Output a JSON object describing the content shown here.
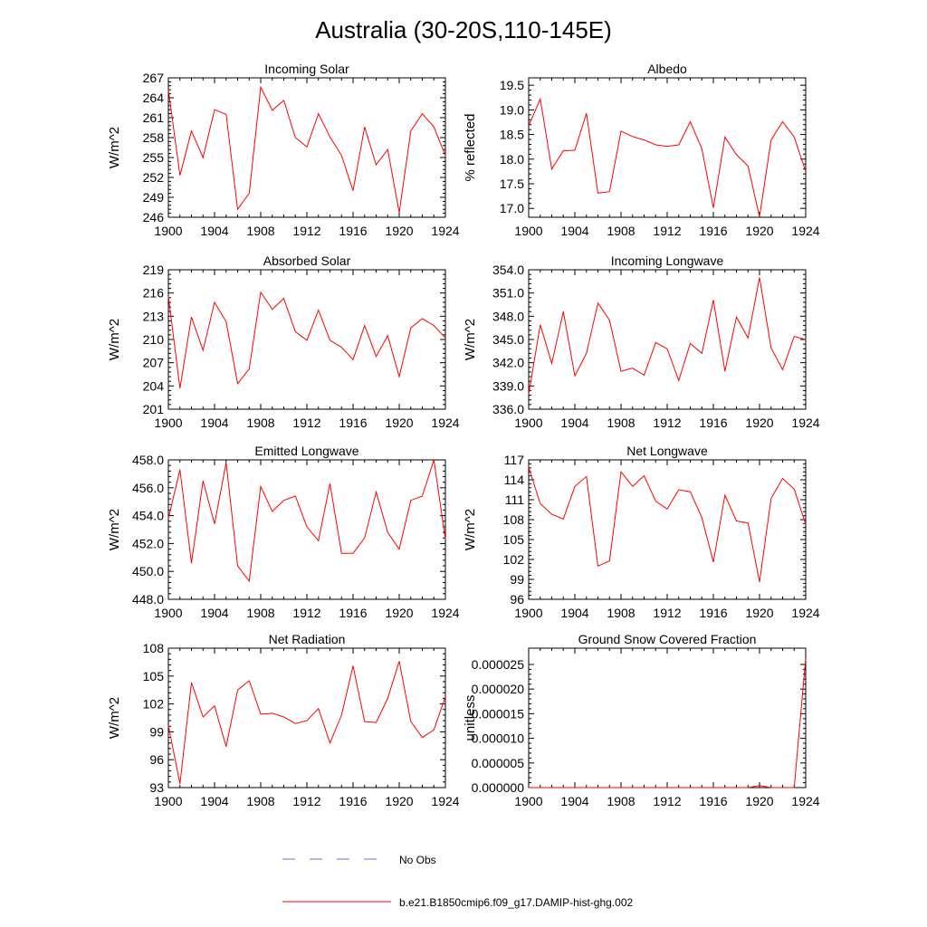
{
  "figure_title": "Australia (30-20S,110-145E)",
  "legend": {
    "obs_label": "No Obs",
    "obs_color": "#6f6fc7",
    "model_label": "b.e21.B1850cmip6.f09_g17.DAMIP-hist-ghg.002",
    "model_color": "#ff0000"
  },
  "chart_data": [
    {
      "type": "line",
      "title": "Incoming Solar",
      "ylabel": "W/m^2",
      "x": [
        1900,
        1901,
        1902,
        1903,
        1904,
        1905,
        1906,
        1907,
        1908,
        1909,
        1910,
        1911,
        1912,
        1913,
        1914,
        1915,
        1916,
        1917,
        1918,
        1919,
        1920,
        1921,
        1922,
        1923,
        1924
      ],
      "values": [
        265.2,
        252.3,
        259.0,
        255.0,
        262.2,
        261.5,
        247.2,
        249.6,
        265.6,
        262.1,
        263.6,
        258.0,
        256.6,
        261.6,
        258.1,
        255.3,
        250.0,
        259.6,
        253.9,
        256.2,
        246.7,
        259.0,
        261.6,
        259.6,
        255.3
      ],
      "ylim": [
        246,
        267
      ],
      "yticks": [
        "246",
        "249",
        "252",
        "255",
        "258",
        "261",
        "264",
        "267"
      ],
      "xlim": [
        1900,
        1924
      ],
      "xticks": [
        "1900",
        "1904",
        "1908",
        "1912",
        "1916",
        "1920",
        "1924"
      ]
    },
    {
      "type": "line",
      "title": "Albedo",
      "ylabel": "% reflected",
      "x": [
        1900,
        1901,
        1902,
        1903,
        1904,
        1905,
        1906,
        1907,
        1908,
        1909,
        1910,
        1911,
        1912,
        1913,
        1914,
        1915,
        1916,
        1917,
        1918,
        1919,
        1920,
        1921,
        1922,
        1923,
        1924
      ],
      "values": [
        18.68,
        19.22,
        17.8,
        18.17,
        18.18,
        18.93,
        17.31,
        17.34,
        18.57,
        18.46,
        18.39,
        18.29,
        18.26,
        18.29,
        18.76,
        18.21,
        17.01,
        18.45,
        18.09,
        17.86,
        16.83,
        18.39,
        18.76,
        18.45,
        17.75
      ],
      "ylim": [
        16.82,
        19.65
      ],
      "yticks": [
        "17.0",
        "17.5",
        "18.0",
        "18.5",
        "19.0",
        "19.5"
      ],
      "xlim": [
        1900,
        1924
      ],
      "xticks": [
        "1900",
        "1904",
        "1908",
        "1912",
        "1916",
        "1920",
        "1924"
      ]
    },
    {
      "type": "line",
      "title": "Absorbed Solar",
      "ylabel": "W/m^2",
      "x": [
        1900,
        1901,
        1902,
        1903,
        1904,
        1905,
        1906,
        1907,
        1908,
        1909,
        1910,
        1911,
        1912,
        1913,
        1914,
        1915,
        1916,
        1917,
        1918,
        1919,
        1920,
        1921,
        1922,
        1923,
        1924
      ],
      "values": [
        215.6,
        203.7,
        212.9,
        208.6,
        214.8,
        212.3,
        204.3,
        206.2,
        216.1,
        213.9,
        215.3,
        211.0,
        209.9,
        213.8,
        209.9,
        209.0,
        207.4,
        211.8,
        207.8,
        210.5,
        205.2,
        211.5,
        212.7,
        211.8,
        210.2
      ],
      "ylim": [
        201,
        219
      ],
      "yticks": [
        "201",
        "204",
        "207",
        "210",
        "213",
        "216",
        "219"
      ],
      "xlim": [
        1900,
        1924
      ],
      "xticks": [
        "1900",
        "1904",
        "1908",
        "1912",
        "1916",
        "1920",
        "1924"
      ]
    },
    {
      "type": "line",
      "title": "Incoming Longwave",
      "ylabel": "W/m^2",
      "x": [
        1900,
        1901,
        1902,
        1903,
        1904,
        1905,
        1906,
        1907,
        1908,
        1909,
        1910,
        1911,
        1912,
        1913,
        1914,
        1915,
        1916,
        1917,
        1918,
        1919,
        1920,
        1921,
        1922,
        1923,
        1924
      ],
      "values": [
        337.9,
        346.9,
        341.9,
        348.6,
        340.3,
        343.2,
        349.7,
        347.5,
        340.9,
        341.3,
        340.4,
        344.6,
        343.8,
        339.7,
        344.5,
        343.2,
        350.1,
        340.9,
        347.9,
        345.2,
        353.0,
        343.9,
        341.1,
        345.4,
        345.0
      ],
      "ylim": [
        336,
        354
      ],
      "yticks": [
        "336.0",
        "339.0",
        "342.0",
        "345.0",
        "348.0",
        "351.0",
        "354.0"
      ],
      "xlim": [
        1900,
        1924
      ],
      "xticks": [
        "1900",
        "1904",
        "1908",
        "1912",
        "1916",
        "1920",
        "1924"
      ]
    },
    {
      "type": "line",
      "title": "Emitted Longwave",
      "ylabel": "W/m^2",
      "x": [
        1900,
        1901,
        1902,
        1903,
        1904,
        1905,
        1906,
        1907,
        1908,
        1909,
        1910,
        1911,
        1912,
        1913,
        1914,
        1915,
        1916,
        1917,
        1918,
        1919,
        1920,
        1921,
        1922,
        1923,
        1924
      ],
      "values": [
        453.8,
        457.3,
        450.6,
        456.5,
        453.4,
        457.8,
        450.4,
        449.3,
        456.1,
        454.3,
        455.1,
        455.4,
        453.2,
        452.2,
        456.3,
        451.3,
        451.3,
        452.4,
        455.7,
        452.8,
        451.6,
        455.1,
        455.4,
        458.0,
        452.3
      ],
      "ylim": [
        448,
        458
      ],
      "yticks": [
        "448.0",
        "450.0",
        "452.0",
        "454.0",
        "456.0",
        "458.0"
      ],
      "xlim": [
        1900,
        1924
      ],
      "xticks": [
        "1900",
        "1904",
        "1908",
        "1912",
        "1916",
        "1920",
        "1924"
      ]
    },
    {
      "type": "line",
      "title": "Net Longwave",
      "ylabel": "W/m^2",
      "x": [
        1900,
        1901,
        1902,
        1903,
        1904,
        1905,
        1906,
        1907,
        1908,
        1909,
        1910,
        1911,
        1912,
        1913,
        1914,
        1915,
        1916,
        1917,
        1918,
        1919,
        1920,
        1921,
        1922,
        1923,
        1924
      ],
      "values": [
        115.9,
        110.4,
        108.8,
        108.1,
        113.0,
        114.5,
        101.0,
        101.8,
        115.2,
        113.0,
        114.6,
        110.8,
        109.6,
        112.5,
        112.2,
        108.3,
        101.6,
        111.7,
        107.8,
        107.5,
        98.6,
        111.2,
        114.2,
        112.6,
        107.3
      ],
      "ylim": [
        96,
        117
      ],
      "yticks": [
        "96",
        "99",
        "102",
        "105",
        "108",
        "111",
        "114",
        "117"
      ],
      "xlim": [
        1900,
        1924
      ],
      "xticks": [
        "1900",
        "1904",
        "1908",
        "1912",
        "1916",
        "1920",
        "1924"
      ]
    },
    {
      "type": "line",
      "title": "Net Radiation",
      "ylabel": "W/m^2",
      "x": [
        1900,
        1901,
        1902,
        1903,
        1904,
        1905,
        1906,
        1907,
        1908,
        1909,
        1910,
        1911,
        1912,
        1913,
        1914,
        1915,
        1916,
        1917,
        1918,
        1919,
        1920,
        1921,
        1922,
        1923,
        1924
      ],
      "values": [
        99.7,
        93.4,
        104.3,
        100.6,
        101.8,
        97.4,
        103.5,
        104.5,
        100.9,
        101.0,
        100.6,
        99.9,
        100.2,
        101.5,
        97.8,
        100.8,
        106.1,
        100.1,
        100.0,
        102.6,
        106.6,
        100.1,
        98.4,
        99.2,
        102.8
      ],
      "ylim": [
        93,
        108
      ],
      "yticks": [
        "93",
        "96",
        "99",
        "102",
        "105",
        "108"
      ],
      "xlim": [
        1900,
        1924
      ],
      "xticks": [
        "1900",
        "1904",
        "1908",
        "1912",
        "1916",
        "1920",
        "1924"
      ]
    },
    {
      "type": "line",
      "title": "Ground Snow Covered Fraction",
      "ylabel": "unitless",
      "x": [
        1900,
        1901,
        1902,
        1903,
        1904,
        1905,
        1906,
        1907,
        1908,
        1909,
        1910,
        1911,
        1912,
        1913,
        1914,
        1915,
        1916,
        1917,
        1918,
        1919,
        1920,
        1921,
        1922,
        1923,
        1924
      ],
      "values": [
        0,
        0,
        0,
        0,
        0,
        0,
        0,
        0,
        0,
        0,
        0,
        0,
        0,
        0,
        0,
        0,
        0,
        0,
        0,
        0,
        4e-07,
        0,
        0,
        0,
        2.62e-05
      ],
      "ylim": [
        0,
        2.83e-05
      ],
      "yticks": [
        "0.000000",
        "0.000005",
        "0.000010",
        "0.000015",
        "0.000020",
        "0.000025"
      ],
      "xlim": [
        1900,
        1924
      ],
      "xticks": [
        "1900",
        "1904",
        "1908",
        "1912",
        "1916",
        "1920",
        "1924"
      ]
    }
  ]
}
